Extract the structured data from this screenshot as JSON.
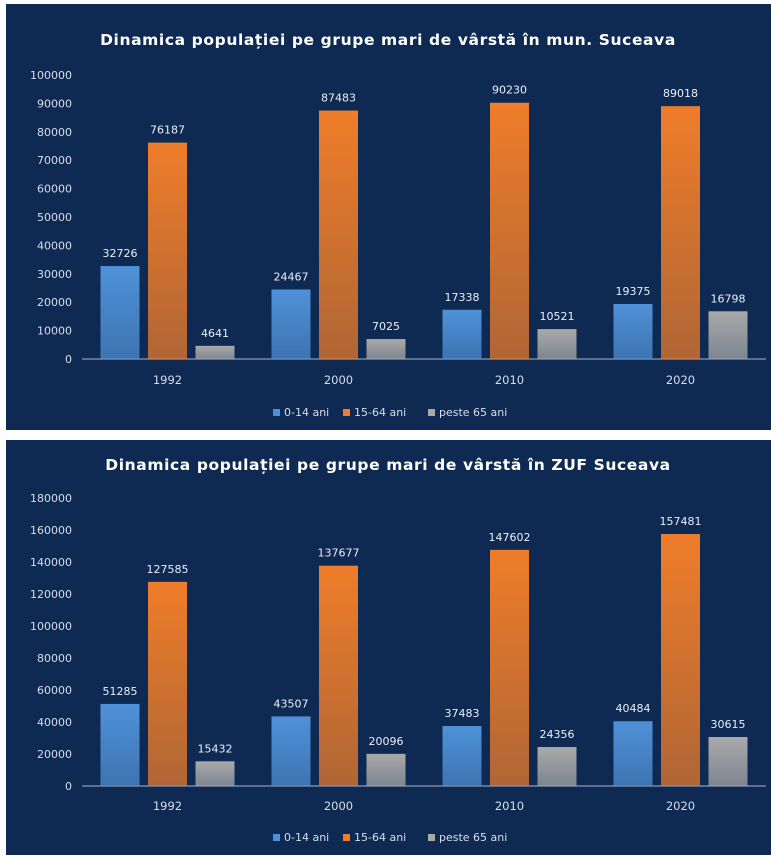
{
  "chart_data": [
    {
      "type": "bar",
      "title": "Dinamica populației pe grupe mari de vârstă în mun. Suceava",
      "categories": [
        "1992",
        "2000",
        "2010",
        "2020"
      ],
      "series": [
        {
          "name": "0-14 ani",
          "values": [
            32726,
            24467,
            17338,
            19375
          ],
          "color": "#4f91d8"
        },
        {
          "name": "15-64 ani",
          "values": [
            76187,
            87483,
            90230,
            89018
          ],
          "color": "#ef7d2a"
        },
        {
          "name": "peste 65 ani",
          "values": [
            4641,
            7025,
            10521,
            16798
          ],
          "color": "#a9a9a9"
        }
      ],
      "yticks": [
        "0",
        "10000",
        "20000",
        "30000",
        "40000",
        "50000",
        "60000",
        "70000",
        "80000",
        "90000",
        "100000"
      ],
      "ylim": [
        0,
        100000
      ],
      "grid": false,
      "legend": "bottom",
      "data_labels": true
    },
    {
      "type": "bar",
      "title": "Dinamica populației pe grupe mari de vârstă în ZUF Suceava",
      "categories": [
        "1992",
        "2000",
        "2010",
        "2020"
      ],
      "series": [
        {
          "name": "0-14 ani",
          "values": [
            51285,
            43507,
            37483,
            40484
          ],
          "color": "#4f91d8"
        },
        {
          "name": "15-64 ani",
          "values": [
            127585,
            137677,
            147602,
            157481
          ],
          "color": "#ef7d2a"
        },
        {
          "name": "peste 65 ani",
          "values": [
            15432,
            20096,
            24356,
            30615
          ],
          "color": "#a9a9a9"
        }
      ],
      "yticks": [
        "0",
        "20000",
        "40000",
        "60000",
        "80000",
        "100000",
        "120000",
        "140000",
        "160000",
        "180000"
      ],
      "ylim": [
        0,
        180000
      ],
      "grid": false,
      "legend": "bottom",
      "data_labels": true
    }
  ]
}
